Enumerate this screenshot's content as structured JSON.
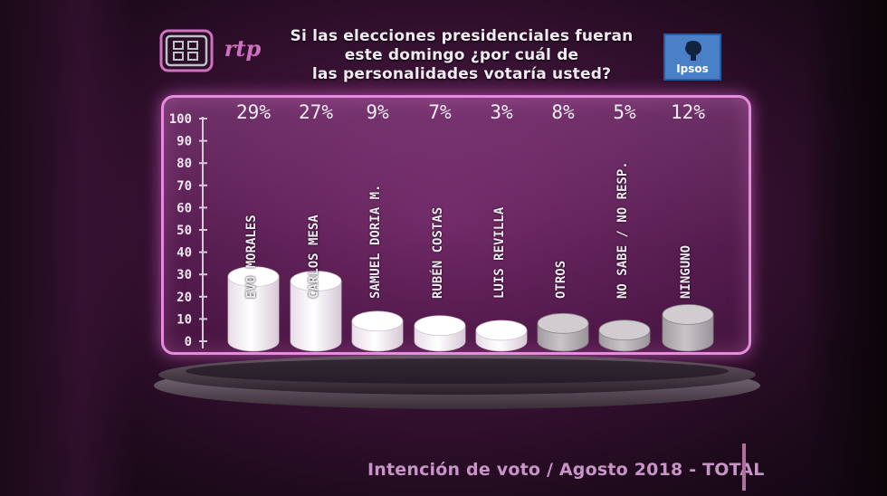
{
  "header": {
    "question": "Si las elecciones presidenciales fueran este domingo ¿por cuál de las personalidades votaría usted?",
    "question_lines": [
      "Si las elecciones presidenciales fueran",
      "este domingo ¿por cuál de",
      "las personalidades votaría usted?"
    ],
    "channel_logo_text": "rtp",
    "pollster_logo_text": "Ipsos"
  },
  "footer": {
    "caption": "Intención de voto / Agosto 2018 - TOTAL"
  },
  "colors": {
    "panel_border": "#e88ae0",
    "bar_white": "#f4eef4",
    "bar_grey": "#b4b0b4",
    "label_text": "#f2eaf2"
  },
  "chart_data": {
    "type": "bar",
    "title": "Si las elecciones presidenciales fueran este domingo ¿por cuál de las personalidades votaría usted?",
    "xlabel": "",
    "ylabel": "",
    "ylim": [
      0,
      100
    ],
    "yticks": [
      "100",
      "90",
      "80",
      "70",
      "60",
      "50",
      "40",
      "30",
      "20",
      "10",
      "0"
    ],
    "categories": [
      "EVO MORALES",
      "CARLOS MESA",
      "SAMUEL DORIA M.",
      "RUBÉN COSTAS",
      "LUIS REVILLA",
      "OTROS",
      "NO SABE / NO RESP.",
      "NINGUNO"
    ],
    "values": [
      29,
      27,
      9,
      7,
      3,
      8,
      5,
      12
    ],
    "value_labels": [
      "29%",
      "27%",
      "9%",
      "7%",
      "3%",
      "8%",
      "5%",
      "12%"
    ],
    "bar_style": [
      "white",
      "white",
      "white",
      "white",
      "white",
      "grey",
      "grey",
      "grey"
    ],
    "grid": false,
    "legend": "none"
  }
}
